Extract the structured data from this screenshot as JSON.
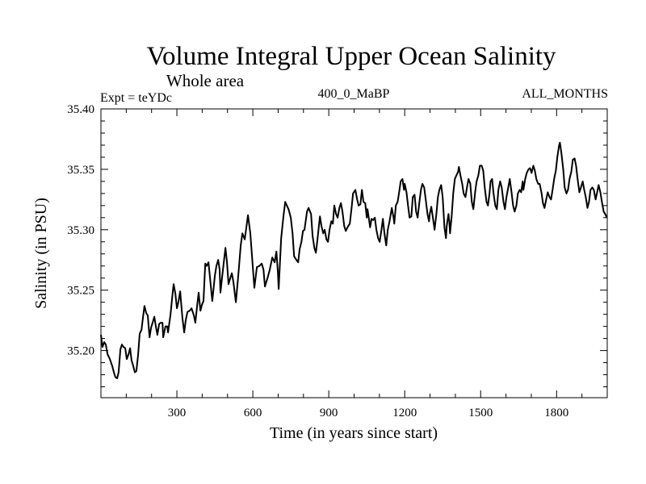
{
  "chart_data": {
    "type": "line",
    "title": "Volume Integral Upper Ocean Salinity",
    "subtitle": "Whole area",
    "annotations": {
      "left": "Expt = teYDc",
      "center": "400_0_MaBP",
      "right": "ALL_MONTHS"
    },
    "xlabel": "Time (in years since start)",
    "ylabel": "Salinity (in PSU)",
    "xlim": [
      0,
      2000
    ],
    "ylim": [
      35.161,
      35.4
    ],
    "xticks": [
      300,
      600,
      900,
      1200,
      1500,
      1800
    ],
    "xtick_labels": [
      "300",
      "600",
      "900",
      "1200",
      "1500",
      "1800"
    ],
    "x_minor_step": 100,
    "yticks": [
      35.2,
      35.25,
      35.3,
      35.35,
      35.4
    ],
    "ytick_labels": [
      "35.20",
      "35.25",
      "35.30",
      "35.35",
      "35.40"
    ],
    "y_minor_step": 0.01,
    "grid": false,
    "legend": "none",
    "line_color": "#000000",
    "series": [
      {
        "name": "Salinity",
        "points": [
          [
            0,
            35.213
          ],
          [
            6,
            35.203
          ],
          [
            13,
            35.207
          ],
          [
            19,
            35.205
          ],
          [
            26,
            35.197
          ],
          [
            35,
            35.193
          ],
          [
            45,
            35.187
          ],
          [
            51,
            35.182
          ],
          [
            57,
            35.178
          ],
          [
            64,
            35.177
          ],
          [
            70,
            35.182
          ],
          [
            77,
            35.201
          ],
          [
            83,
            35.205
          ],
          [
            89,
            35.203
          ],
          [
            96,
            35.202
          ],
          [
            102,
            35.193
          ],
          [
            109,
            35.197
          ],
          [
            115,
            35.202
          ],
          [
            121,
            35.192
          ],
          [
            128,
            35.187
          ],
          [
            134,
            35.182
          ],
          [
            140,
            35.183
          ],
          [
            147,
            35.197
          ],
          [
            153,
            35.214
          ],
          [
            160,
            35.217
          ],
          [
            166,
            35.227
          ],
          [
            172,
            35.237
          ],
          [
            179,
            35.231
          ],
          [
            185,
            35.229
          ],
          [
            192,
            35.211
          ],
          [
            198,
            35.219
          ],
          [
            204,
            35.223
          ],
          [
            211,
            35.228
          ],
          [
            217,
            35.22
          ],
          [
            223,
            35.213
          ],
          [
            230,
            35.222
          ],
          [
            236,
            35.223
          ],
          [
            243,
            35.223
          ],
          [
            246,
            35.211
          ],
          [
            255,
            35.22
          ],
          [
            262,
            35.22
          ],
          [
            265,
            35.215
          ],
          [
            275,
            35.23
          ],
          [
            281,
            35.243
          ],
          [
            287,
            35.255
          ],
          [
            294,
            35.247
          ],
          [
            300,
            35.235
          ],
          [
            306,
            35.24
          ],
          [
            313,
            35.249
          ],
          [
            322,
            35.227
          ],
          [
            329,
            35.215
          ],
          [
            335,
            35.225
          ],
          [
            342,
            35.232
          ],
          [
            351,
            35.233
          ],
          [
            358,
            35.235
          ],
          [
            367,
            35.229
          ],
          [
            373,
            35.223
          ],
          [
            380,
            35.237
          ],
          [
            386,
            35.248
          ],
          [
            393,
            35.233
          ],
          [
            399,
            35.238
          ],
          [
            405,
            35.241
          ],
          [
            412,
            35.272
          ],
          [
            418,
            35.27
          ],
          [
            425,
            35.273
          ],
          [
            431,
            35.26
          ],
          [
            440,
            35.241
          ],
          [
            450,
            35.262
          ],
          [
            456,
            35.27
          ],
          [
            463,
            35.275
          ],
          [
            469,
            35.267
          ],
          [
            472,
            35.248
          ],
          [
            482,
            35.267
          ],
          [
            492,
            35.285
          ],
          [
            498,
            35.273
          ],
          [
            504,
            35.255
          ],
          [
            511,
            35.26
          ],
          [
            517,
            35.264
          ],
          [
            523,
            35.257
          ],
          [
            533,
            35.24
          ],
          [
            543,
            35.263
          ],
          [
            552,
            35.287
          ],
          [
            559,
            35.297
          ],
          [
            568,
            35.292
          ],
          [
            575,
            35.303
          ],
          [
            581,
            35.312
          ],
          [
            590,
            35.297
          ],
          [
            597,
            35.277
          ],
          [
            606,
            35.252
          ],
          [
            616,
            35.269
          ],
          [
            626,
            35.27
          ],
          [
            635,
            35.272
          ],
          [
            642,
            35.267
          ],
          [
            648,
            35.253
          ],
          [
            658,
            35.26
          ],
          [
            667,
            35.267
          ],
          [
            677,
            35.277
          ],
          [
            686,
            35.273
          ],
          [
            693,
            35.282
          ],
          [
            699,
            35.265
          ],
          [
            702,
            35.251
          ],
          [
            712,
            35.293
          ],
          [
            721,
            35.311
          ],
          [
            728,
            35.323
          ],
          [
            741,
            35.317
          ],
          [
            750,
            35.31
          ],
          [
            757,
            35.297
          ],
          [
            763,
            35.278
          ],
          [
            772,
            35.275
          ],
          [
            779,
            35.273
          ],
          [
            785,
            35.284
          ],
          [
            792,
            35.29
          ],
          [
            798,
            35.299
          ],
          [
            804,
            35.3
          ],
          [
            814,
            35.315
          ],
          [
            820,
            35.318
          ],
          [
            830,
            35.313
          ],
          [
            836,
            35.295
          ],
          [
            843,
            35.285
          ],
          [
            849,
            35.281
          ],
          [
            855,
            35.291
          ],
          [
            865,
            35.311
          ],
          [
            871,
            35.303
          ],
          [
            878,
            35.297
          ],
          [
            884,
            35.3
          ],
          [
            891,
            35.292
          ],
          [
            897,
            35.29
          ],
          [
            903,
            35.3
          ],
          [
            910,
            35.307
          ],
          [
            916,
            35.305
          ],
          [
            922,
            35.32
          ],
          [
            929,
            35.313
          ],
          [
            935,
            35.31
          ],
          [
            942,
            35.318
          ],
          [
            948,
            35.322
          ],
          [
            954,
            35.315
          ],
          [
            961,
            35.303
          ],
          [
            967,
            35.299
          ],
          [
            974,
            35.302
          ],
          [
            983,
            35.305
          ],
          [
            990,
            35.318
          ],
          [
            996,
            35.33
          ],
          [
            1005,
            35.333
          ],
          [
            1012,
            35.325
          ],
          [
            1018,
            35.32
          ],
          [
            1025,
            35.321
          ],
          [
            1031,
            35.333
          ],
          [
            1037,
            35.323
          ],
          [
            1044,
            35.322
          ],
          [
            1050,
            35.31
          ],
          [
            1053,
            35.317
          ],
          [
            1060,
            35.307
          ],
          [
            1063,
            35.302
          ],
          [
            1069,
            35.309
          ],
          [
            1076,
            35.308
          ],
          [
            1082,
            35.31
          ],
          [
            1088,
            35.3
          ],
          [
            1095,
            35.293
          ],
          [
            1101,
            35.29
          ],
          [
            1108,
            35.3
          ],
          [
            1114,
            35.309
          ],
          [
            1120,
            35.297
          ],
          [
            1127,
            35.287
          ],
          [
            1133,
            35.3
          ],
          [
            1140,
            35.307
          ],
          [
            1149,
            35.318
          ],
          [
            1156,
            35.31
          ],
          [
            1159,
            35.305
          ],
          [
            1165,
            35.32
          ],
          [
            1172,
            35.323
          ],
          [
            1178,
            35.331
          ],
          [
            1184,
            35.34
          ],
          [
            1191,
            35.342
          ],
          [
            1197,
            35.333
          ],
          [
            1200,
            35.338
          ],
          [
            1207,
            35.331
          ],
          [
            1213,
            35.32
          ],
          [
            1219,
            35.31
          ],
          [
            1226,
            35.311
          ],
          [
            1232,
            35.327
          ],
          [
            1239,
            35.329
          ],
          [
            1245,
            35.315
          ],
          [
            1251,
            35.31
          ],
          [
            1258,
            35.323
          ],
          [
            1264,
            35.333
          ],
          [
            1270,
            35.338
          ],
          [
            1277,
            35.335
          ],
          [
            1283,
            35.325
          ],
          [
            1290,
            35.313
          ],
          [
            1296,
            35.307
          ],
          [
            1299,
            35.313
          ],
          [
            1305,
            35.319
          ],
          [
            1312,
            35.309
          ],
          [
            1318,
            35.3
          ],
          [
            1325,
            35.313
          ],
          [
            1331,
            35.327
          ],
          [
            1337,
            35.333
          ],
          [
            1344,
            35.337
          ],
          [
            1350,
            35.327
          ],
          [
            1357,
            35.302
          ],
          [
            1363,
            35.293
          ],
          [
            1366,
            35.303
          ],
          [
            1373,
            35.313
          ],
          [
            1376,
            35.307
          ],
          [
            1379,
            35.297
          ],
          [
            1385,
            35.31
          ],
          [
            1392,
            35.331
          ],
          [
            1398,
            35.342
          ],
          [
            1404,
            35.345
          ],
          [
            1411,
            35.348
          ],
          [
            1414,
            35.352
          ],
          [
            1420,
            35.345
          ],
          [
            1427,
            35.338
          ],
          [
            1433,
            35.33
          ],
          [
            1440,
            35.327
          ],
          [
            1446,
            35.335
          ],
          [
            1452,
            35.342
          ],
          [
            1459,
            35.338
          ],
          [
            1465,
            35.323
          ],
          [
            1471,
            35.317
          ],
          [
            1478,
            35.331
          ],
          [
            1484,
            35.34
          ],
          [
            1491,
            35.345
          ],
          [
            1497,
            35.353
          ],
          [
            1504,
            35.353
          ],
          [
            1510,
            35.349
          ],
          [
            1516,
            35.335
          ],
          [
            1523,
            35.323
          ],
          [
            1529,
            35.32
          ],
          [
            1535,
            35.33
          ],
          [
            1539,
            35.34
          ],
          [
            1545,
            35.342
          ],
          [
            1551,
            35.33
          ],
          [
            1558,
            35.32
          ],
          [
            1564,
            35.317
          ],
          [
            1570,
            35.333
          ],
          [
            1577,
            35.34
          ],
          [
            1583,
            35.335
          ],
          [
            1590,
            35.323
          ],
          [
            1596,
            35.317
          ],
          [
            1602,
            35.327
          ],
          [
            1609,
            35.335
          ],
          [
            1615,
            35.342
          ],
          [
            1622,
            35.331
          ],
          [
            1628,
            35.32
          ],
          [
            1634,
            35.315
          ],
          [
            1641,
            35.32
          ],
          [
            1647,
            35.33
          ],
          [
            1654,
            35.333
          ],
          [
            1660,
            35.331
          ],
          [
            1666,
            35.34
          ],
          [
            1669,
            35.333
          ],
          [
            1676,
            35.342
          ],
          [
            1682,
            35.347
          ],
          [
            1689,
            35.35
          ],
          [
            1695,
            35.351
          ],
          [
            1701,
            35.347
          ],
          [
            1708,
            35.353
          ],
          [
            1714,
            35.349
          ],
          [
            1720,
            35.342
          ],
          [
            1727,
            35.338
          ],
          [
            1733,
            35.338
          ],
          [
            1740,
            35.331
          ],
          [
            1746,
            35.322
          ],
          [
            1752,
            35.318
          ],
          [
            1759,
            35.325
          ],
          [
            1765,
            35.331
          ],
          [
            1772,
            35.327
          ],
          [
            1778,
            35.325
          ],
          [
            1784,
            35.333
          ],
          [
            1791,
            35.343
          ],
          [
            1797,
            35.349
          ],
          [
            1803,
            35.36
          ],
          [
            1810,
            35.37
          ],
          [
            1813,
            35.372
          ],
          [
            1819,
            35.363
          ],
          [
            1826,
            35.35
          ],
          [
            1832,
            35.335
          ],
          [
            1839,
            35.33
          ],
          [
            1845,
            35.333
          ],
          [
            1851,
            35.342
          ],
          [
            1858,
            35.348
          ],
          [
            1864,
            35.358
          ],
          [
            1871,
            35.359
          ],
          [
            1877,
            35.353
          ],
          [
            1883,
            35.342
          ],
          [
            1890,
            35.331
          ],
          [
            1896,
            35.335
          ],
          [
            1903,
            35.34
          ],
          [
            1909,
            35.333
          ],
          [
            1915,
            35.327
          ],
          [
            1922,
            35.318
          ],
          [
            1928,
            35.323
          ],
          [
            1934,
            35.333
          ],
          [
            1941,
            35.335
          ],
          [
            1947,
            35.333
          ],
          [
            1954,
            35.325
          ],
          [
            1960,
            35.331
          ],
          [
            1966,
            35.337
          ],
          [
            1973,
            35.331
          ],
          [
            1979,
            35.323
          ],
          [
            1986,
            35.315
          ],
          [
            1992,
            35.313
          ],
          [
            1998,
            35.31
          ]
        ]
      }
    ]
  }
}
